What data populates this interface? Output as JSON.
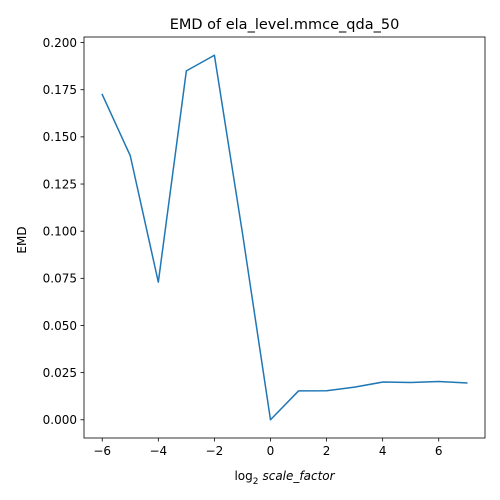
{
  "chart_data": {
    "type": "line",
    "title": "EMD of ela_level.mmce_qda_50",
    "xlabel": {
      "prefix": "log",
      "subscript": "2",
      "variable": "scale_factor"
    },
    "ylabel": "EMD",
    "xlim": [
      -6.65,
      7.65
    ],
    "ylim": [
      -0.00966,
      0.20296
    ],
    "xticks": [
      -6,
      -4,
      -2,
      0,
      2,
      4,
      6
    ],
    "xtick_labels": [
      "−6",
      "−4",
      "−2",
      "0",
      "2",
      "4",
      "6"
    ],
    "yticks": [
      0.0,
      0.025,
      0.05,
      0.075,
      0.1,
      0.125,
      0.15,
      0.175,
      0.2
    ],
    "ytick_labels": [
      "0.000",
      "0.025",
      "0.050",
      "0.075",
      "0.100",
      "0.125",
      "0.150",
      "0.175",
      "0.200"
    ],
    "grid": false,
    "series": [
      {
        "color": "#1f77b4",
        "x": [
          -6,
          -5,
          -4,
          -3,
          -2,
          -1,
          0,
          1,
          2,
          3,
          4,
          5,
          6,
          7
        ],
        "y": [
          0.1725,
          0.14,
          0.073,
          0.185,
          0.1933,
          0.099,
          0.0,
          0.0153,
          0.0154,
          0.0173,
          0.02,
          0.0198,
          0.0203,
          0.0195
        ]
      }
    ]
  }
}
